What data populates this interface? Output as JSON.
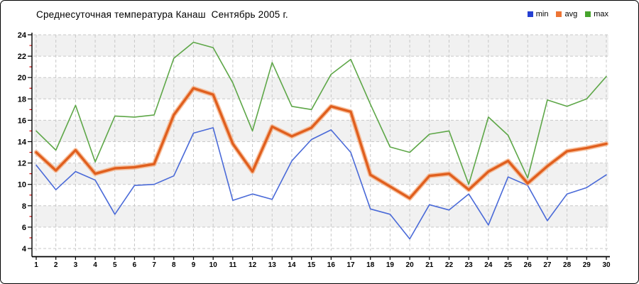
{
  "page": {
    "title": "Среднесуточная температура Канаш  Сентябрь 2005 г."
  },
  "legend": [
    {
      "label": "min",
      "color": "#2540d2"
    },
    {
      "label": "avg",
      "color": "#ed7434"
    },
    {
      "label": "max",
      "color": "#46a42c"
    }
  ],
  "chart_data": {
    "type": "line",
    "title": "Среднесуточная температура Канаш  Сентябрь 2005 г.",
    "x": [
      1,
      2,
      3,
      4,
      5,
      6,
      7,
      8,
      9,
      10,
      11,
      12,
      13,
      14,
      15,
      16,
      17,
      18,
      19,
      20,
      21,
      22,
      23,
      24,
      25,
      26,
      27,
      28,
      29,
      30
    ],
    "xlabel": "",
    "ylabel": "",
    "ylim": [
      4,
      24
    ],
    "ytick_major_step": 2,
    "ytick_minor_step": 1,
    "grid": true,
    "legend_position": "top-right",
    "plot_band_fill": "#f1f1f1",
    "grid_color": "#c8c8c8",
    "axis_color": "#000000",
    "minor_tick_color": "#d40000",
    "series": [
      {
        "name": "min",
        "color": "#4a6ad8",
        "width": 1.6,
        "values": [
          11.8,
          9.5,
          11.2,
          10.4,
          7.2,
          9.9,
          10.0,
          10.8,
          14.8,
          15.3,
          8.5,
          9.1,
          8.6,
          12.2,
          14.2,
          15.1,
          13.0,
          7.7,
          7.2,
          4.9,
          8.1,
          7.6,
          9.1,
          6.2,
          10.7,
          9.9,
          6.6,
          9.1,
          9.7,
          10.9
        ]
      },
      {
        "name": "avg",
        "color": "#e05f1e",
        "width": 3.4,
        "halo_color": "#f5a878",
        "values": [
          13.0,
          11.3,
          13.2,
          11.0,
          11.5,
          11.6,
          11.9,
          16.5,
          19.0,
          18.4,
          13.8,
          11.2,
          15.4,
          14.5,
          15.3,
          17.3,
          16.8,
          10.9,
          9.8,
          8.7,
          10.8,
          11.0,
          9.5,
          11.2,
          12.2,
          10.1,
          11.7,
          13.1,
          13.4,
          13.8
        ]
      },
      {
        "name": "max",
        "color": "#5ea748",
        "width": 1.6,
        "values": [
          15.0,
          13.2,
          17.4,
          12.1,
          16.4,
          16.3,
          16.5,
          21.8,
          23.3,
          22.8,
          19.5,
          15.0,
          21.4,
          17.3,
          17.0,
          20.3,
          21.7,
          17.5,
          13.5,
          13.0,
          14.7,
          15.0,
          10.0,
          16.3,
          14.6,
          10.6,
          17.9,
          17.3,
          18.0,
          20.1
        ]
      }
    ]
  }
}
